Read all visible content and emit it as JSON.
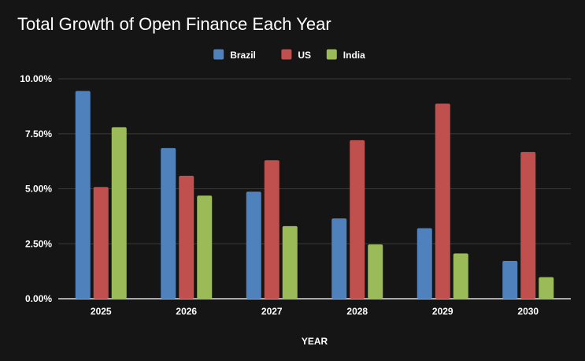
{
  "chart_data": {
    "type": "bar",
    "title": "Total Growth of Open Finance Each Year",
    "xlabel": "YEAR",
    "ylabel": "",
    "categories": [
      "2025",
      "2026",
      "2027",
      "2028",
      "2029",
      "2030"
    ],
    "series": [
      {
        "name": "Brazil",
        "color": "#4f81bd",
        "values": [
          9.45,
          6.85,
          4.87,
          3.65,
          3.21,
          1.72
        ]
      },
      {
        "name": "US",
        "color": "#c0504d",
        "values": [
          5.08,
          5.59,
          6.3,
          7.21,
          8.87,
          6.67
        ]
      },
      {
        "name": "India",
        "color": "#9bbb59",
        "values": [
          7.8,
          4.69,
          3.3,
          2.47,
          2.06,
          0.98
        ]
      }
    ],
    "ylim": [
      0,
      10
    ],
    "yticks": [
      "0.00%",
      "2.50%",
      "5.00%",
      "7.50%",
      "10.00%"
    ],
    "grid": true,
    "legend_position": "top-center"
  }
}
